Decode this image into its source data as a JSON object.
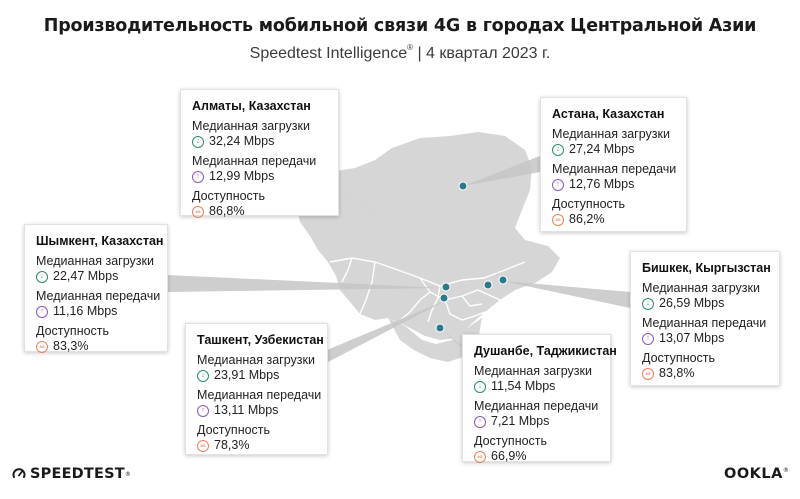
{
  "title": "Производительность мобильной связи 4G в городах Центральной Азии",
  "subtitle": "Speedtest Intelligence",
  "subtitle_mark": "®",
  "subtitle_period": " | 4 квартал 2023 г.",
  "colors": {
    "map_fill": "#d6d6d6",
    "border_line": "#ffffff",
    "dot": "#2b7a8c",
    "download_icon": "#2f8a6a",
    "upload_icon": "#8a5ab8",
    "availability_icon": "#e8835a"
  },
  "cities": [
    {
      "id": "almaty",
      "name": "Алматы, Казахстан",
      "download_label": "Медианная загрузки",
      "download": "32,24 Mbps",
      "upload_label": "Медианная передачи",
      "upload": "12,99 Mbps",
      "availability_label": "Доступность",
      "availability": "86,8%",
      "availability_pct": 86.8
    },
    {
      "id": "astana",
      "name": "Астана, Казахстан",
      "download_label": "Медианная загрузки",
      "download": "27,24 Mbps",
      "upload_label": "Медианная передачи",
      "upload": "12,76 Mbps",
      "availability_label": "Доступность",
      "availability": "86,2%",
      "availability_pct": 86.2
    },
    {
      "id": "shymkent",
      "name": "Шымкент, Казахстан",
      "download_label": "Медианная загрузки",
      "download": "22,47 Mbps",
      "upload_label": "Медианная передачи",
      "upload": "11,16 Mbps",
      "availability_label": "Доступность",
      "availability": "83,3%",
      "availability_pct": 83.3
    },
    {
      "id": "bishkek",
      "name": "Бишкек, Кыргызстан",
      "download_label": "Медианная загрузки",
      "download": "26,59 Mbps",
      "upload_label": "Медианная передачи",
      "upload": "13,07 Mbps",
      "availability_label": "Доступность",
      "availability": "83,8%",
      "availability_pct": 83.8
    },
    {
      "id": "tashkent",
      "name": "Ташкент, Узбекистан",
      "download_label": "Медианная загрузки",
      "download": "23,91 Mbps",
      "upload_label": "Медианная передачи",
      "upload": "13,11 Mbps",
      "availability_label": "Доступность",
      "availability": "78,3%",
      "availability_pct": 78.3
    },
    {
      "id": "dushanbe",
      "name": "Душанбе, Таджикистан",
      "download_label": "Медианная загрузки",
      "download": "11,54 Mbps",
      "upload_label": "Медианная передачи",
      "upload": "7,21 Mbps",
      "availability_label": "Доступность",
      "availability": "66,9%",
      "availability_pct": 66.9
    }
  ],
  "footer": {
    "speedtest_logo": "SPEEDTEST",
    "speedtest_mark": "®",
    "ookla_logo": "OOKLA",
    "ookla_mark": "®"
  }
}
